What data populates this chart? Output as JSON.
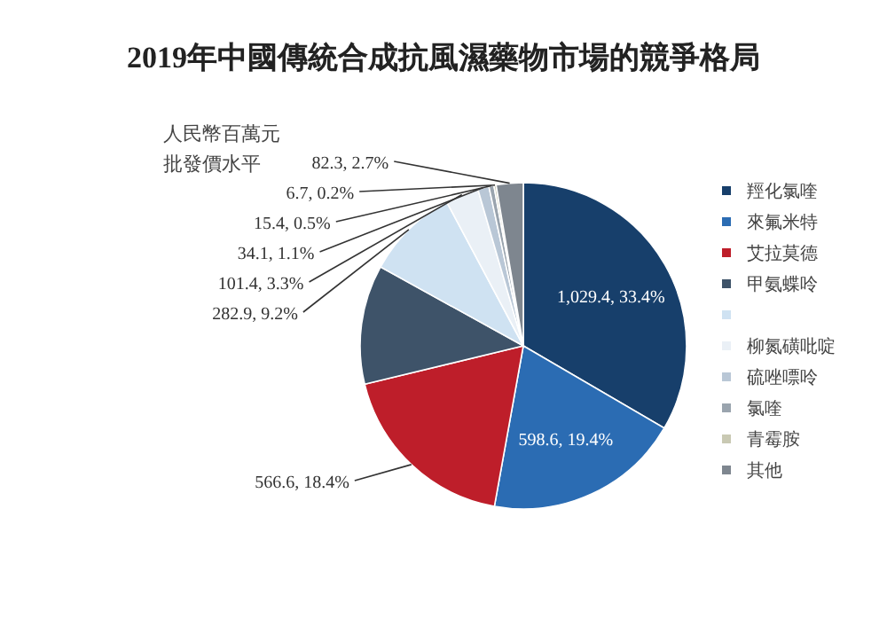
{
  "chart_data": {
    "type": "pie",
    "title": "2019年中國傳統合成抗風濕藥物市場的競爭格局",
    "annotations": [
      "人民幣百萬元",
      "批發價水平"
    ],
    "categories": [
      "羥化氯喹",
      "來氟米特",
      "艾拉莫德",
      "甲氨蝶呤",
      null,
      "柳氮磺吡啶",
      "硫唑嘌呤",
      "氯喹",
      "青霉胺",
      "其他"
    ],
    "values": [
      1029.4,
      598.6,
      566.6,
      363.7,
      282.9,
      101.4,
      34.1,
      15.4,
      6.7,
      82.3
    ],
    "value_labels": [
      "1,029.4, 33.4%",
      "598.6, 19.4%",
      "566.6, 18.4%",
      null,
      "282.9, 9.2%",
      "101.4, 3.3%",
      "34.1, 1.1%",
      "15.4, 0.5%",
      "6.7, 0.2%",
      "82.3, 2.7%"
    ],
    "colors": [
      "#173f6b",
      "#2b6cb3",
      "#be1e2a",
      "#3e5369",
      "#cfe2f2",
      "#eaf0f6",
      "#b9c7d6",
      "#9aa4ae",
      "#c9c9b3",
      "#7e868f"
    ],
    "legend": "right"
  }
}
